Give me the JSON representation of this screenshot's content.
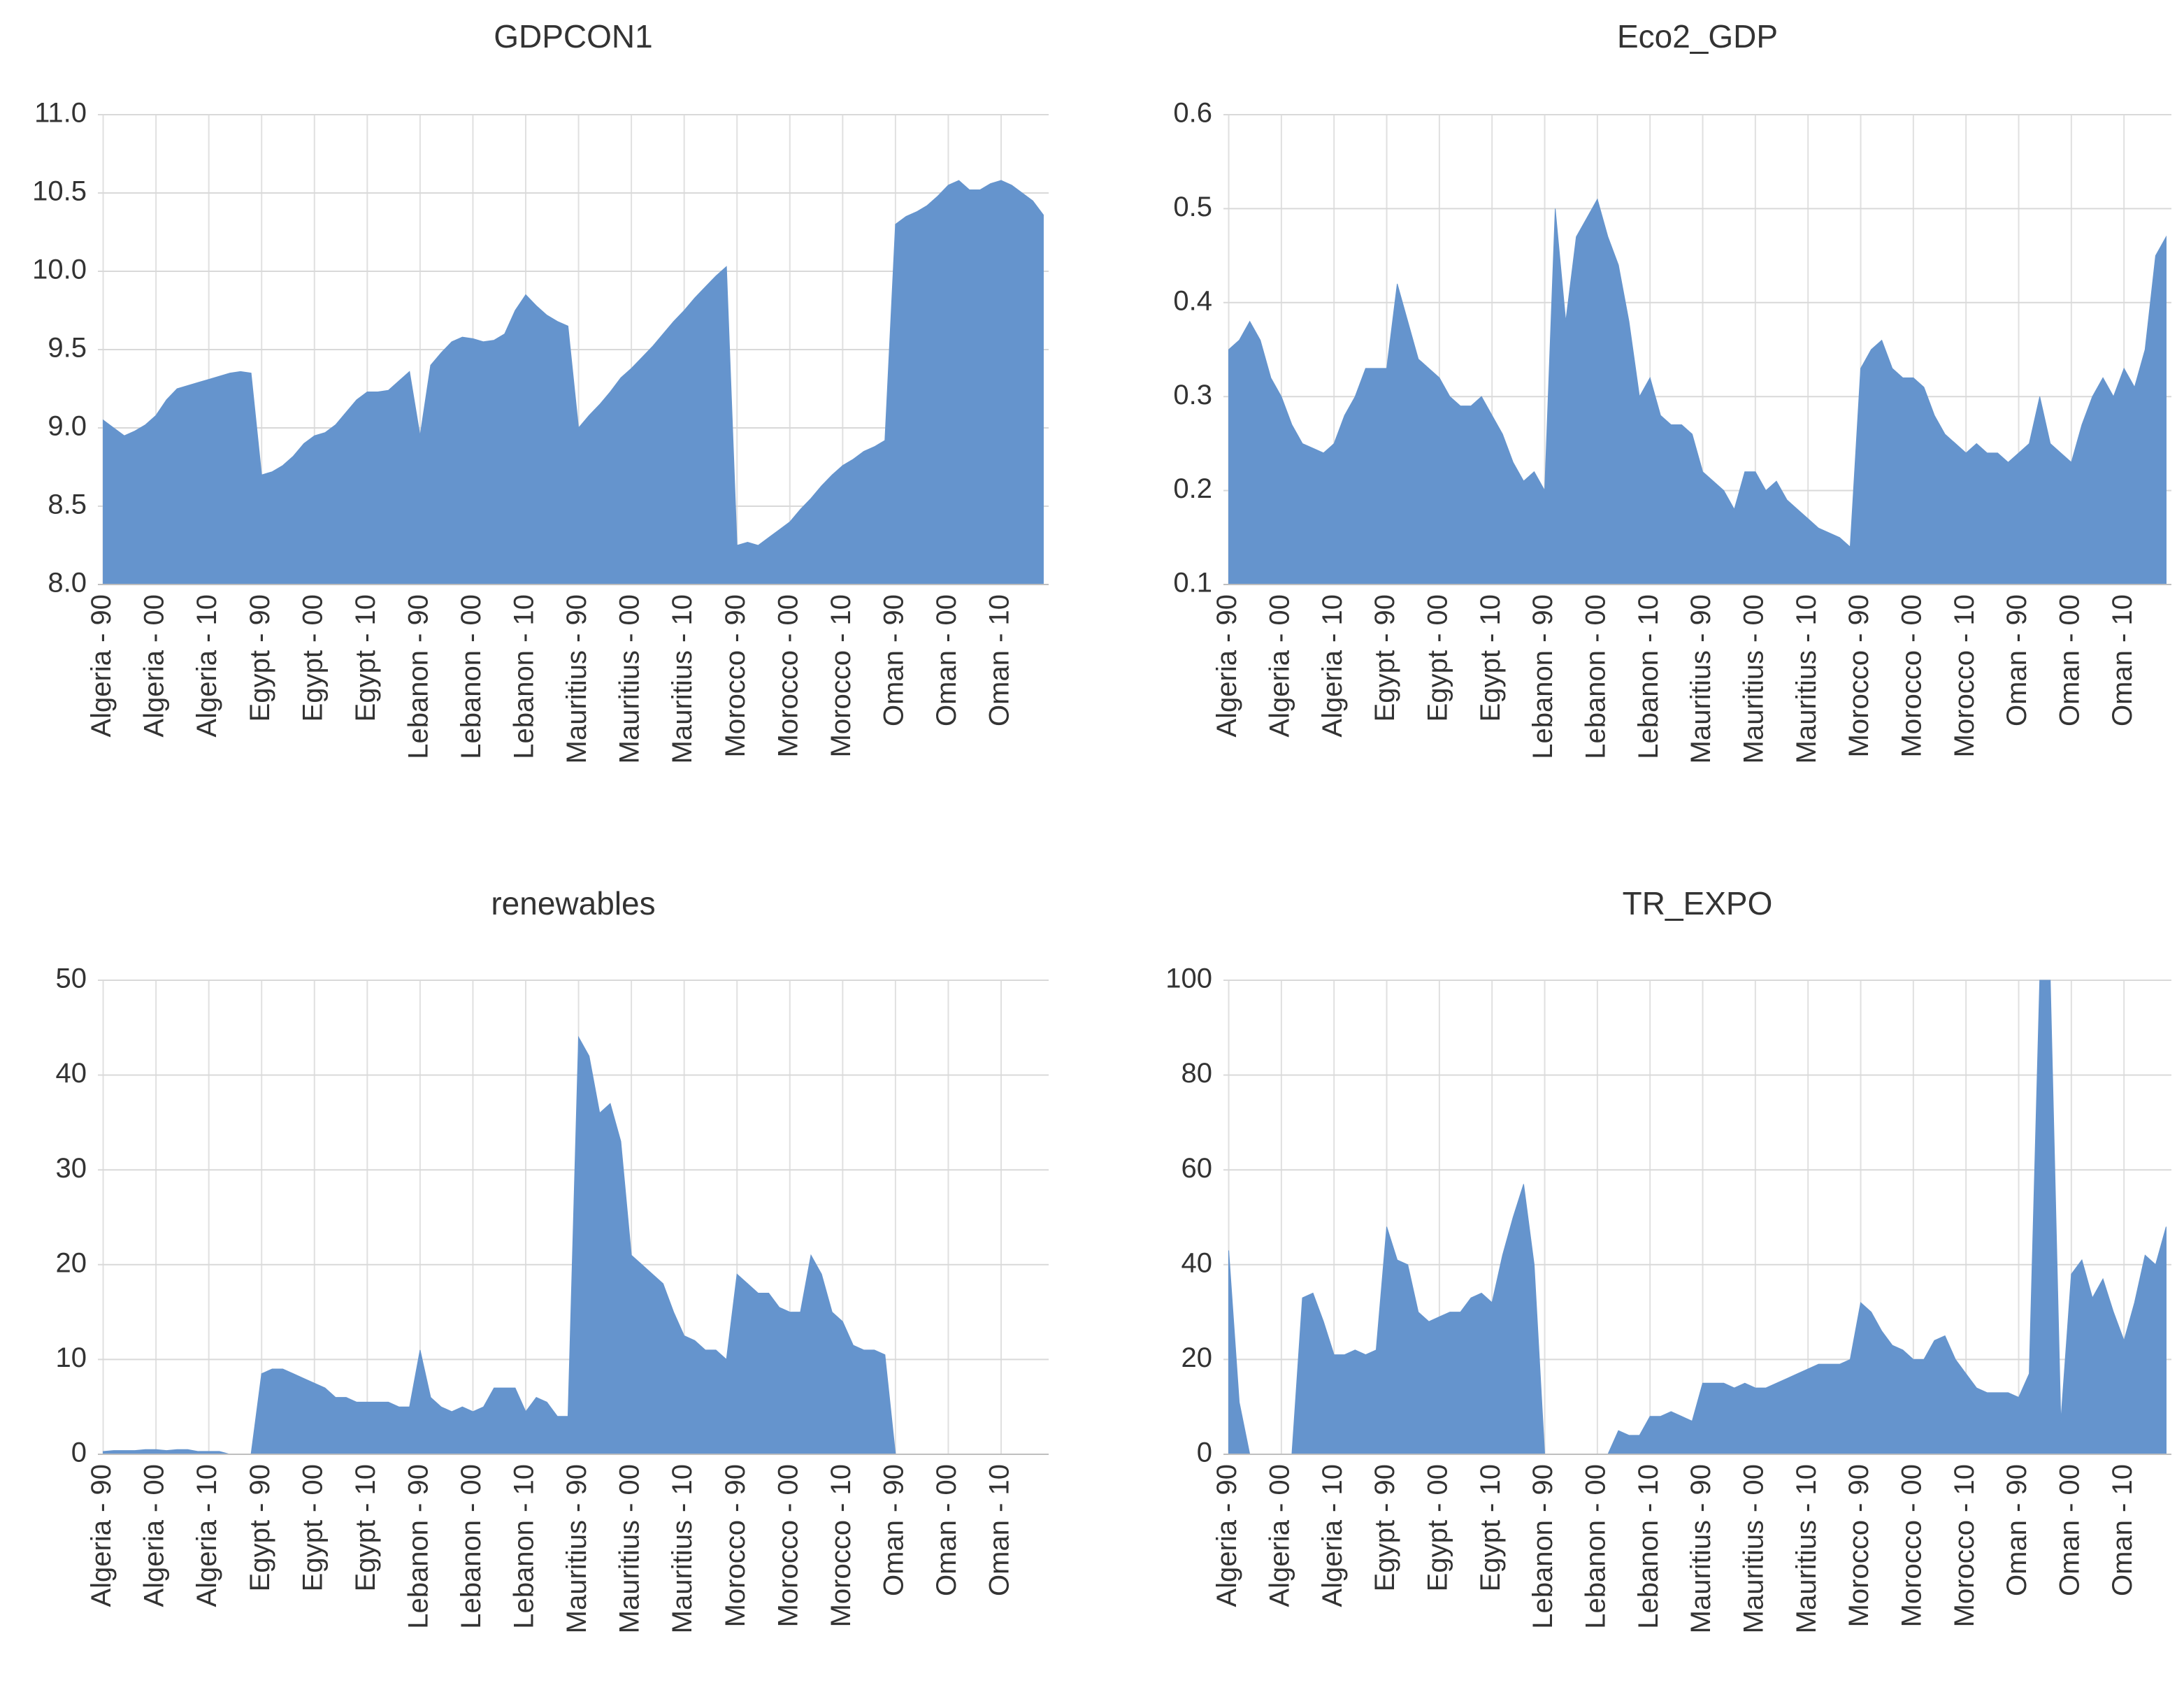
{
  "chart_data": [
    {
      "type": "area",
      "title": "GDPCON1",
      "color": "#6594cd",
      "grid": true,
      "ylim": [
        8,
        11
      ],
      "yticks": [
        {
          "value": 8,
          "label": "8.0"
        },
        8.5,
        {
          "value": 9,
          "label": "9.0"
        },
        9.5,
        {
          "value": 10,
          "label": "10.0"
        },
        10.5,
        {
          "value": 11,
          "label": "11.0"
        }
      ],
      "categories": [
        "Algeria - 90",
        null,
        null,
        null,
        null,
        "Algeria - 00",
        null,
        null,
        null,
        null,
        "Algeria - 10",
        null,
        null,
        null,
        null,
        "Egypt - 90",
        null,
        null,
        null,
        null,
        "Egypt - 00",
        null,
        null,
        null,
        null,
        "Egypt - 10",
        null,
        null,
        null,
        null,
        "Lebanon - 90",
        null,
        null,
        null,
        null,
        "Lebanon - 00",
        null,
        null,
        null,
        null,
        "Lebanon - 10",
        null,
        null,
        null,
        null,
        "Mauritius - 90",
        null,
        null,
        null,
        null,
        "Mauritius - 00",
        null,
        null,
        null,
        null,
        "Mauritius - 10",
        null,
        null,
        null,
        null,
        "Morocco - 90",
        null,
        null,
        null,
        null,
        "Morocco - 00",
        null,
        null,
        null,
        null,
        "Morocco - 10",
        null,
        null,
        null,
        null,
        "Oman - 90",
        null,
        null,
        null,
        null,
        "Oman - 00",
        null,
        null,
        null,
        null,
        "Oman - 10",
        null,
        null,
        null,
        null
      ],
      "values": [
        9.05,
        9.0,
        8.95,
        8.98,
        9.02,
        9.08,
        9.18,
        9.25,
        9.27,
        9.29,
        9.31,
        9.33,
        9.35,
        9.36,
        9.35,
        8.7,
        8.72,
        8.76,
        8.82,
        8.9,
        8.95,
        8.97,
        9.02,
        9.1,
        9.18,
        9.23,
        9.23,
        9.24,
        9.3,
        9.36,
        8.95,
        9.4,
        9.48,
        9.55,
        9.58,
        9.57,
        9.55,
        9.56,
        9.6,
        9.75,
        9.85,
        9.78,
        9.72,
        9.68,
        9.65,
        9.0,
        9.08,
        9.15,
        9.23,
        9.32,
        9.38,
        9.45,
        9.52,
        9.6,
        9.68,
        9.75,
        9.83,
        9.9,
        9.97,
        10.03,
        8.25,
        8.27,
        8.25,
        8.3,
        8.35,
        8.4,
        8.48,
        8.55,
        8.63,
        8.7,
        8.76,
        8.8,
        8.85,
        8.88,
        8.92,
        10.3,
        10.35,
        10.38,
        10.42,
        10.48,
        10.55,
        10.58,
        10.52,
        10.52,
        10.56,
        10.58,
        10.55,
        10.5,
        10.45,
        10.36
      ]
    },
    {
      "type": "area",
      "title": "Eco2_GDP",
      "color": "#6594cd",
      "grid": true,
      "ylim": [
        0.1,
        0.6
      ],
      "yticks": [
        0.1,
        0.2,
        0.3,
        0.4,
        0.5,
        0.6
      ],
      "categories": [
        "Algeria - 90",
        null,
        null,
        null,
        null,
        "Algeria - 00",
        null,
        null,
        null,
        null,
        "Algeria - 10",
        null,
        null,
        null,
        null,
        "Egypt - 90",
        null,
        null,
        null,
        null,
        "Egypt - 00",
        null,
        null,
        null,
        null,
        "Egypt - 10",
        null,
        null,
        null,
        null,
        "Lebanon - 90",
        null,
        null,
        null,
        null,
        "Lebanon - 00",
        null,
        null,
        null,
        null,
        "Lebanon - 10",
        null,
        null,
        null,
        null,
        "Mauritius - 90",
        null,
        null,
        null,
        null,
        "Mauritius - 00",
        null,
        null,
        null,
        null,
        "Mauritius - 10",
        null,
        null,
        null,
        null,
        "Morocco - 90",
        null,
        null,
        null,
        null,
        "Morocco - 00",
        null,
        null,
        null,
        null,
        "Morocco - 10",
        null,
        null,
        null,
        null,
        "Oman - 90",
        null,
        null,
        null,
        null,
        "Oman - 00",
        null,
        null,
        null,
        null,
        "Oman - 10",
        null,
        null,
        null,
        null
      ],
      "values": [
        0.35,
        0.36,
        0.38,
        0.36,
        0.32,
        0.3,
        0.27,
        0.25,
        0.245,
        0.24,
        0.25,
        0.28,
        0.3,
        0.33,
        0.33,
        0.33,
        0.42,
        0.38,
        0.34,
        0.33,
        0.32,
        0.3,
        0.29,
        0.29,
        0.3,
        0.28,
        0.26,
        0.23,
        0.21,
        0.22,
        0.2,
        0.5,
        0.38,
        0.47,
        0.49,
        0.51,
        0.47,
        0.44,
        0.38,
        0.3,
        0.32,
        0.28,
        0.27,
        0.27,
        0.26,
        0.22,
        0.21,
        0.2,
        0.18,
        0.22,
        0.22,
        0.2,
        0.21,
        0.19,
        0.18,
        0.17,
        0.16,
        0.155,
        0.15,
        0.14,
        0.33,
        0.35,
        0.36,
        0.33,
        0.32,
        0.32,
        0.31,
        0.28,
        0.26,
        0.25,
        0.24,
        0.25,
        0.24,
        0.24,
        0.23,
        0.24,
        0.25,
        0.3,
        0.25,
        0.24,
        0.23,
        0.27,
        0.3,
        0.32,
        0.3,
        0.33,
        0.31,
        0.35,
        0.45,
        0.47
      ]
    },
    {
      "type": "area",
      "title": "renewables",
      "color": "#6594cd",
      "grid": true,
      "ylim": [
        0,
        50
      ],
      "yticks": [
        0,
        10,
        20,
        30,
        40,
        50
      ],
      "categories": [
        "Algeria - 90",
        null,
        null,
        null,
        null,
        "Algeria - 00",
        null,
        null,
        null,
        null,
        "Algeria - 10",
        null,
        null,
        null,
        null,
        "Egypt - 90",
        null,
        null,
        null,
        null,
        "Egypt - 00",
        null,
        null,
        null,
        null,
        "Egypt - 10",
        null,
        null,
        null,
        null,
        "Lebanon - 90",
        null,
        null,
        null,
        null,
        "Lebanon - 00",
        null,
        null,
        null,
        null,
        "Lebanon - 10",
        null,
        null,
        null,
        null,
        "Mauritius - 90",
        null,
        null,
        null,
        null,
        "Mauritius - 00",
        null,
        null,
        null,
        null,
        "Mauritius - 10",
        null,
        null,
        null,
        null,
        "Morocco - 90",
        null,
        null,
        null,
        null,
        "Morocco - 00",
        null,
        null,
        null,
        null,
        "Morocco - 10",
        null,
        null,
        null,
        null,
        "Oman - 90",
        null,
        null,
        null,
        null,
        "Oman - 00",
        null,
        null,
        null,
        null,
        "Oman - 10",
        null,
        null,
        null,
        null
      ],
      "values": [
        0.3,
        0.4,
        0.4,
        0.4,
        0.5,
        0.5,
        0.4,
        0.5,
        0.5,
        0.3,
        0.3,
        0.3,
        0,
        0,
        0,
        8.5,
        9,
        9,
        8.5,
        8,
        7.5,
        7,
        6,
        6,
        5.5,
        5.5,
        5.5,
        5.5,
        5,
        5,
        11,
        6,
        5,
        4.5,
        5,
        4.5,
        5,
        7,
        7,
        7,
        4.5,
        6,
        5.5,
        4,
        4,
        44,
        42,
        36,
        37,
        33,
        21,
        20,
        19,
        18,
        15,
        12.5,
        12,
        11,
        11,
        10,
        19,
        18,
        17,
        17,
        15.5,
        15,
        15,
        21,
        19,
        15,
        14,
        11.5,
        11,
        11,
        10.5,
        0,
        0,
        0,
        0,
        0,
        0,
        0,
        0,
        0,
        0,
        0,
        0,
        0,
        0,
        0
      ]
    },
    {
      "type": "area",
      "title": "TR_EXPO",
      "color": "#6594cd",
      "grid": true,
      "ylim": [
        0,
        100
      ],
      "yticks": [
        0,
        20,
        40,
        60,
        80,
        100
      ],
      "categories": [
        "Algeria - 90",
        null,
        null,
        null,
        null,
        "Algeria - 00",
        null,
        null,
        null,
        null,
        "Algeria - 10",
        null,
        null,
        null,
        null,
        "Egypt - 90",
        null,
        null,
        null,
        null,
        "Egypt - 00",
        null,
        null,
        null,
        null,
        "Egypt - 10",
        null,
        null,
        null,
        null,
        "Lebanon - 90",
        null,
        null,
        null,
        null,
        "Lebanon - 00",
        null,
        null,
        null,
        null,
        "Lebanon - 10",
        null,
        null,
        null,
        null,
        "Mauritius - 90",
        null,
        null,
        null,
        null,
        "Mauritius - 00",
        null,
        null,
        null,
        null,
        "Mauritius - 10",
        null,
        null,
        null,
        null,
        "Morocco - 90",
        null,
        null,
        null,
        null,
        "Morocco - 00",
        null,
        null,
        null,
        null,
        "Morocco - 10",
        null,
        null,
        null,
        null,
        "Oman - 90",
        null,
        null,
        null,
        null,
        "Oman - 00",
        null,
        null,
        null,
        null,
        "Oman - 10",
        null,
        null,
        null,
        null
      ],
      "values": [
        43,
        11,
        0,
        0,
        0,
        0,
        0,
        33,
        34,
        28,
        21,
        21,
        22,
        21,
        22,
        48,
        41,
        40,
        30,
        28,
        29,
        30,
        30,
        33,
        34,
        32,
        42,
        50,
        57,
        40,
        0,
        0,
        0,
        0,
        0,
        0,
        0,
        5,
        4,
        4,
        8,
        8,
        9,
        8,
        7,
        15,
        15,
        15,
        14,
        15,
        14,
        14,
        15,
        16,
        17,
        18,
        19,
        19,
        19,
        20,
        32,
        30,
        26,
        23,
        22,
        20,
        20,
        24,
        25,
        20,
        17,
        14,
        13,
        13,
        13,
        12,
        17,
        100,
        100,
        7,
        38,
        41,
        33,
        37,
        30,
        24,
        32,
        42,
        40,
        48
      ]
    }
  ]
}
